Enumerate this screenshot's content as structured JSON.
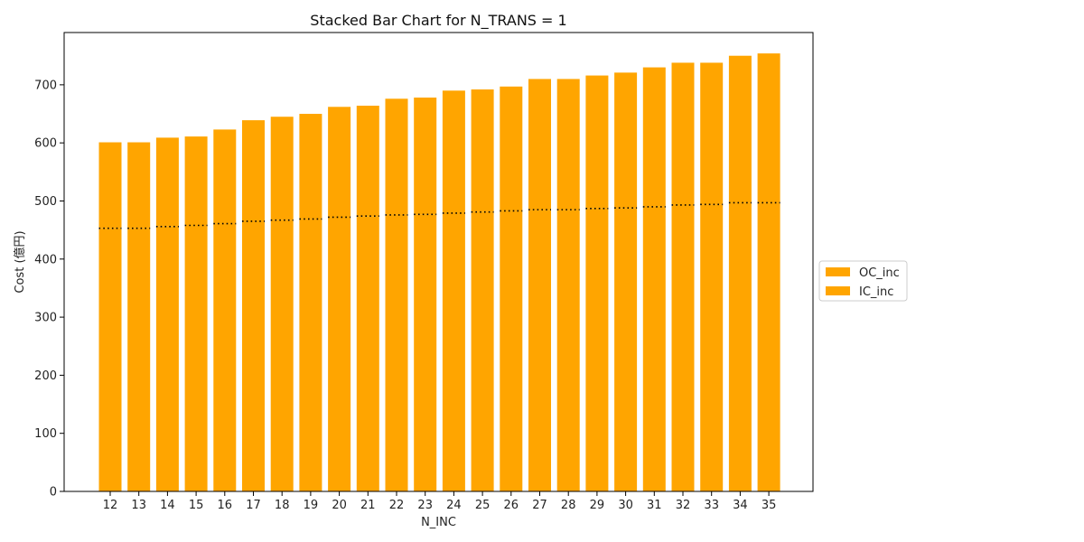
{
  "chart_data": {
    "type": "bar",
    "stacked": true,
    "title": "Stacked Bar Chart for N_TRANS = 1",
    "xlabel": "N_INC",
    "ylabel": "Cost (億円)",
    "categories": [
      "12",
      "13",
      "14",
      "15",
      "16",
      "17",
      "18",
      "19",
      "20",
      "21",
      "22",
      "23",
      "24",
      "25",
      "26",
      "27",
      "28",
      "29",
      "30",
      "31",
      "32",
      "33",
      "34",
      "35"
    ],
    "series": [
      {
        "name": "IC_inc",
        "color": "#FFA500",
        "values": [
          453,
          453,
          456,
          458,
          461,
          465,
          467,
          469,
          472,
          474,
          476,
          477,
          479,
          481,
          483,
          485,
          485,
          487,
          488,
          490,
          493,
          494,
          497,
          497
        ]
      },
      {
        "name": "OC_inc",
        "color": "#FFA500",
        "values": [
          148,
          148,
          153,
          153,
          162,
          174,
          178,
          181,
          190,
          190,
          200,
          201,
          211,
          211,
          214,
          225,
          225,
          229,
          233,
          240,
          245,
          244,
          253,
          257
        ]
      }
    ],
    "ylim": [
      0,
      790
    ],
    "yticks": [
      0,
      100,
      200,
      300,
      400,
      500,
      600,
      700
    ],
    "boundary_style": "dotted",
    "grid": false,
    "legend_placement": "right"
  }
}
